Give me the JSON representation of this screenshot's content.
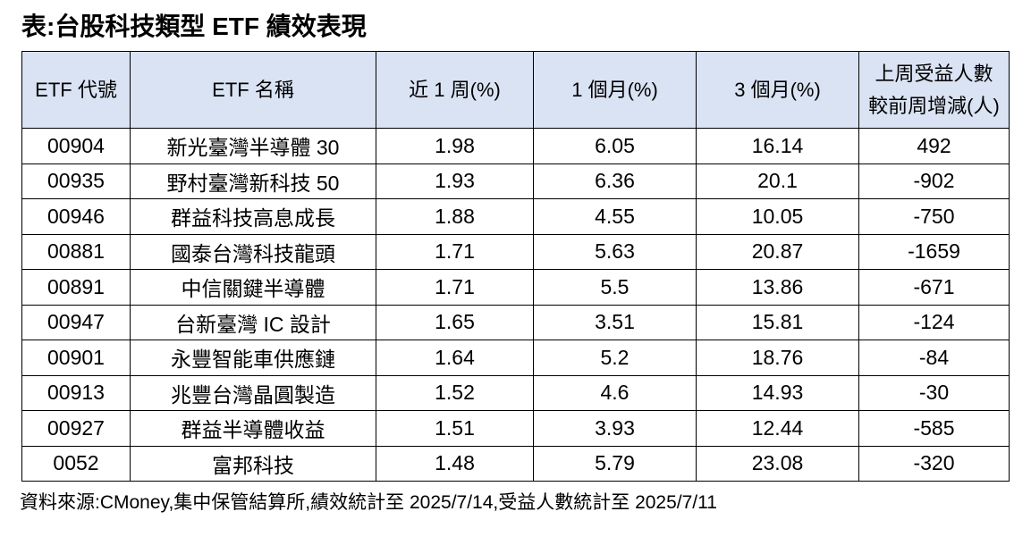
{
  "page": {
    "title": "表:台股科技類型 ETF 績效表現",
    "footer": "資料來源:CMoney,集中保管結算所,績效統計至 2025/7/14,受益人數統計至 2025/7/11"
  },
  "colors": {
    "header_bg": "#dae3f3",
    "border": "#000000",
    "text": "#000000",
    "background": "#ffffff"
  },
  "chart_data": {
    "type": "table",
    "title": "表:台股科技類型 ETF 績效表現",
    "source_note": "資料來源:CMoney,集中保管結算所,績效統計至 2025/7/14,受益人數統計至 2025/7/11",
    "columns": [
      {
        "key": "code",
        "label": "ETF 代號"
      },
      {
        "key": "name",
        "label": "ETF 名稱"
      },
      {
        "key": "week1",
        "label": "近 1 周(%)"
      },
      {
        "key": "month1",
        "label": "1 個月(%)"
      },
      {
        "key": "month3",
        "label": "3 個月(%)"
      },
      {
        "key": "holders_change",
        "label": "上周受益人數",
        "label2": "較前周增減(人)"
      }
    ],
    "rows": [
      {
        "code": "00904",
        "name": "新光臺灣半導體 30",
        "week1": 1.98,
        "month1": 6.05,
        "month3": 16.14,
        "holders_change": 492
      },
      {
        "code": "00935",
        "name": "野村臺灣新科技 50",
        "week1": 1.93,
        "month1": 6.36,
        "month3": 20.1,
        "holders_change": -902
      },
      {
        "code": "00946",
        "name": "群益科技高息成長",
        "week1": 1.88,
        "month1": 4.55,
        "month3": 10.05,
        "holders_change": -750
      },
      {
        "code": "00881",
        "name": "國泰台灣科技龍頭",
        "week1": 1.71,
        "month1": 5.63,
        "month3": 20.87,
        "holders_change": -1659
      },
      {
        "code": "00891",
        "name": "中信關鍵半導體",
        "week1": 1.71,
        "month1": 5.5,
        "month3": 13.86,
        "holders_change": -671
      },
      {
        "code": "00947",
        "name": "台新臺灣 IC 設計",
        "week1": 1.65,
        "month1": 3.51,
        "month3": 15.81,
        "holders_change": -124
      },
      {
        "code": "00901",
        "name": "永豐智能車供應鏈",
        "week1": 1.64,
        "month1": 5.2,
        "month3": 18.76,
        "holders_change": -84
      },
      {
        "code": "00913",
        "name": "兆豐台灣晶圓製造",
        "week1": 1.52,
        "month1": 4.6,
        "month3": 14.93,
        "holders_change": -30
      },
      {
        "code": "00927",
        "name": "群益半導體收益",
        "week1": 1.51,
        "month1": 3.93,
        "month3": 12.44,
        "holders_change": -585
      },
      {
        "code": "0052",
        "name": "富邦科技",
        "week1": 1.48,
        "month1": 5.79,
        "month3": 23.08,
        "holders_change": -320
      }
    ]
  }
}
